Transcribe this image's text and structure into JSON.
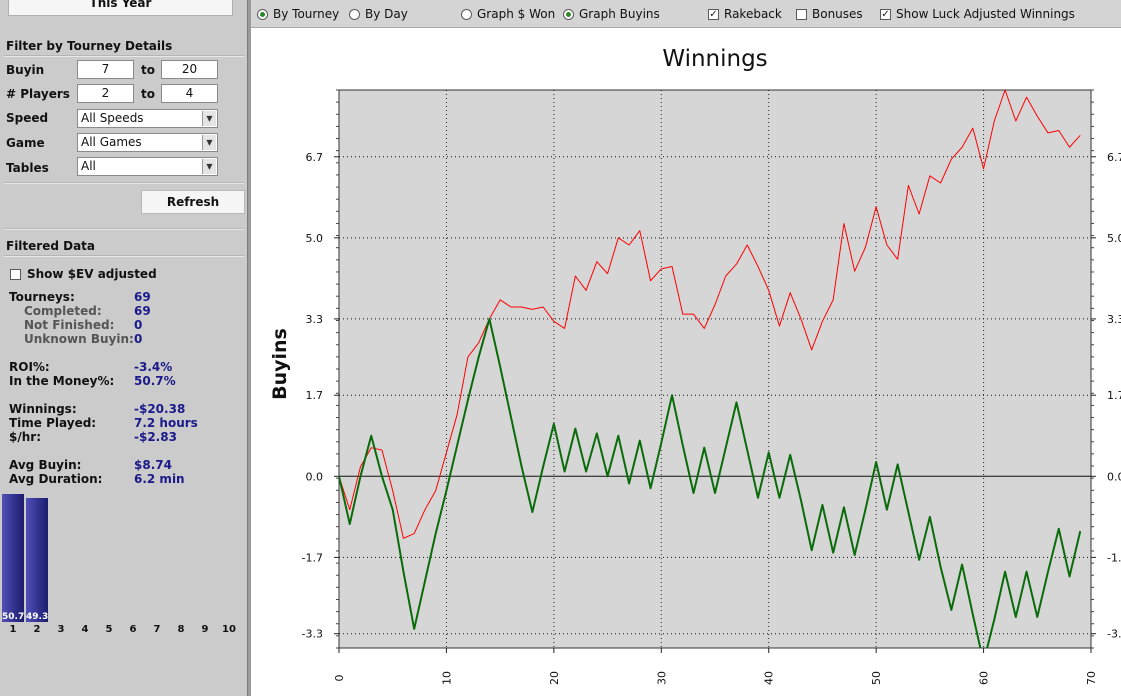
{
  "left": {
    "period_button": "This Year",
    "filter_title": "Filter by Tourney Details",
    "buyin": {
      "label": "Buyin",
      "min": "7",
      "to": "to",
      "max": "20"
    },
    "players": {
      "label": "# Players",
      "min": "2",
      "to": "to",
      "max": "4"
    },
    "speed": {
      "label": "Speed",
      "value": "All Speeds"
    },
    "game": {
      "label": "Game",
      "value": "All Games"
    },
    "tables": {
      "label": "Tables",
      "value": "All"
    },
    "refresh_label": "Refresh",
    "filtered_title": "Filtered Data",
    "ev_checkbox_label": "Show $EV adjusted",
    "stats": [
      {
        "label": "Tourneys:",
        "value": "69",
        "sub": false
      },
      {
        "label": "Completed:",
        "value": "69",
        "sub": true
      },
      {
        "label": "Not Finished:",
        "value": "0",
        "sub": true
      },
      {
        "label": "Unknown Buyin:",
        "value": "0",
        "sub": true
      },
      {
        "label": "ROI%:",
        "value": "-3.4%",
        "sub": false
      },
      {
        "label": "In the Money%:",
        "value": "50.7%",
        "sub": false
      },
      {
        "label": "Winnings:",
        "value": "-$20.38",
        "sub": false
      },
      {
        "label": "Time Played:",
        "value": "7.2 hours",
        "sub": false
      },
      {
        "label": "$/hr:",
        "value": "-$2.83",
        "sub": false
      },
      {
        "label": "Avg Buyin:",
        "value": "$8.74",
        "sub": false
      },
      {
        "label": "Avg Duration:",
        "value": "6.2 min",
        "sub": false
      }
    ],
    "histogram": {
      "values": [
        50.7,
        49.3,
        0,
        0,
        0,
        0,
        0,
        0,
        0,
        0
      ],
      "value_labels": [
        "50.7",
        "49.3"
      ],
      "ticks": [
        "1",
        "2",
        "3",
        "4",
        "5",
        "6",
        "7",
        "8",
        "9",
        "10"
      ]
    }
  },
  "toolbar": {
    "by_tourney": "By Tourney",
    "by_day": "By Day",
    "graph_won": "Graph $ Won",
    "graph_buyins": "Graph Buyins",
    "rakeback": "Rakeback",
    "bonuses": "Bonuses",
    "luck": "Show Luck Adjusted Winnings"
  },
  "chart_data": {
    "type": "line",
    "title": "Winnings",
    "ylabel": "Buyins",
    "xlim": [
      0,
      70
    ],
    "ylim": [
      -3.6,
      8.1
    ],
    "x_ticks": [
      "0",
      "10",
      "20",
      "30",
      "40",
      "50",
      "60",
      "70"
    ],
    "x_tick_values": [
      0,
      10,
      20,
      30,
      40,
      50,
      60,
      70
    ],
    "y_ticks": [
      "6.7",
      "5.0",
      "3.3",
      "1.7",
      "0.0",
      "-1.7",
      "-3.3"
    ],
    "y_tick_values": [
      6.7,
      5.0,
      3.3,
      1.7,
      0.0,
      -1.7,
      -3.3
    ],
    "grid": true,
    "series": [
      {
        "color": "#ff0000",
        "values": [
          0,
          -0.7,
          0.2,
          0.6,
          0.55,
          -0.3,
          -1.3,
          -1.2,
          -0.7,
          -0.3,
          0.5,
          1.3,
          2.5,
          2.8,
          3.3,
          3.7,
          3.55,
          3.55,
          3.5,
          3.55,
          3.25,
          3.1,
          4.2,
          3.9,
          4.5,
          4.25,
          5.0,
          4.85,
          5.15,
          4.1,
          4.35,
          4.4,
          3.4,
          3.4,
          3.1,
          3.6,
          4.2,
          4.45,
          4.85,
          4.4,
          3.9,
          3.15,
          3.85,
          3.3,
          2.65,
          3.25,
          3.7,
          5.3,
          4.3,
          4.8,
          5.65,
          4.85,
          4.55,
          6.1,
          5.5,
          6.3,
          6.15,
          6.65,
          6.9,
          7.3,
          6.45,
          7.45,
          8.1,
          7.45,
          7.95,
          7.55,
          7.2,
          7.25,
          6.9,
          7.15
        ]
      },
      {
        "color": "#0a6b0a",
        "values": [
          0,
          -1.0,
          0,
          0.85,
          0,
          -0.7,
          -2.0,
          -3.2,
          -2.2,
          -1.2,
          -0.3,
          0.65,
          1.6,
          2.5,
          3.3,
          2.3,
          1.25,
          0.2,
          -0.75,
          0.2,
          1.1,
          0.1,
          1.0,
          0.1,
          0.9,
          0,
          0.85,
          -0.15,
          0.75,
          -0.25,
          0.7,
          1.7,
          0.65,
          -0.35,
          0.6,
          -0.35,
          0.6,
          1.55,
          0.55,
          -0.45,
          0.5,
          -0.45,
          0.45,
          -0.5,
          -1.55,
          -0.6,
          -1.6,
          -0.65,
          -1.65,
          -0.7,
          0.3,
          -0.7,
          0.25,
          -0.75,
          -1.75,
          -0.85,
          -1.9,
          -2.8,
          -1.85,
          -2.9,
          -3.9,
          -3.0,
          -2.0,
          -2.95,
          -2.0,
          -2.95,
          -2.0,
          -1.1,
          -2.1,
          -1.15
        ]
      }
    ]
  }
}
